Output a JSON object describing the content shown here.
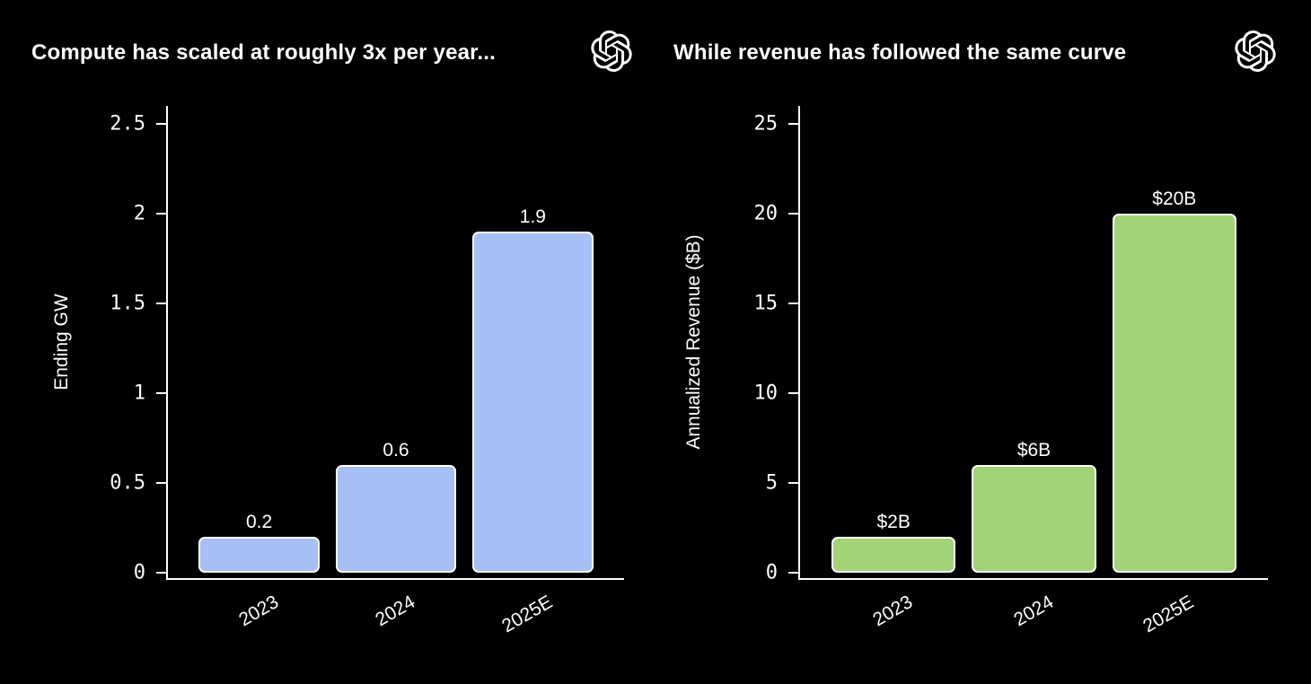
{
  "canvas": {
    "background": "#000000",
    "text_color": "#FFFFFF"
  },
  "chart_data": [
    {
      "type": "bar",
      "title": "Compute has scaled at roughly 3x per year...",
      "categories": [
        "2023",
        "2024",
        "2025E"
      ],
      "values": [
        0.2,
        0.6,
        1.9
      ],
      "bar_labels": [
        "0.2",
        "0.6",
        "1.9"
      ],
      "xlabel": "",
      "ylabel": "Ending GW",
      "yticks": [
        0,
        0.5,
        1,
        1.5,
        2,
        2.5
      ],
      "ytick_labels": [
        "0",
        "0.5",
        "1",
        "1.5",
        "2",
        "2.5"
      ],
      "ylim": [
        0,
        2.6
      ],
      "grid": false,
      "legend": false,
      "xtick_rotation_deg": 30,
      "bar_color": "#A6BFF4",
      "bar_edge_color": "#FFFFFF",
      "axis_color": "#FFFFFF",
      "corner_icon": "openai-logo"
    },
    {
      "type": "bar",
      "title": "While revenue has followed the same curve",
      "categories": [
        "2023",
        "2024",
        "2025E"
      ],
      "values": [
        2,
        6,
        20
      ],
      "bar_labels": [
        "$2B",
        "$6B",
        "$20B"
      ],
      "xlabel": "",
      "ylabel": "Annualized Revenue ($B)",
      "yticks": [
        0,
        5,
        10,
        15,
        20,
        25
      ],
      "ytick_labels": [
        "0",
        "5",
        "10",
        "15",
        "20",
        "25"
      ],
      "ylim": [
        0,
        26
      ],
      "grid": false,
      "legend": false,
      "xtick_rotation_deg": 30,
      "bar_color": "#A2D377",
      "bar_edge_color": "#FFFFFF",
      "axis_color": "#FFFFFF",
      "corner_icon": "openai-logo"
    }
  ]
}
